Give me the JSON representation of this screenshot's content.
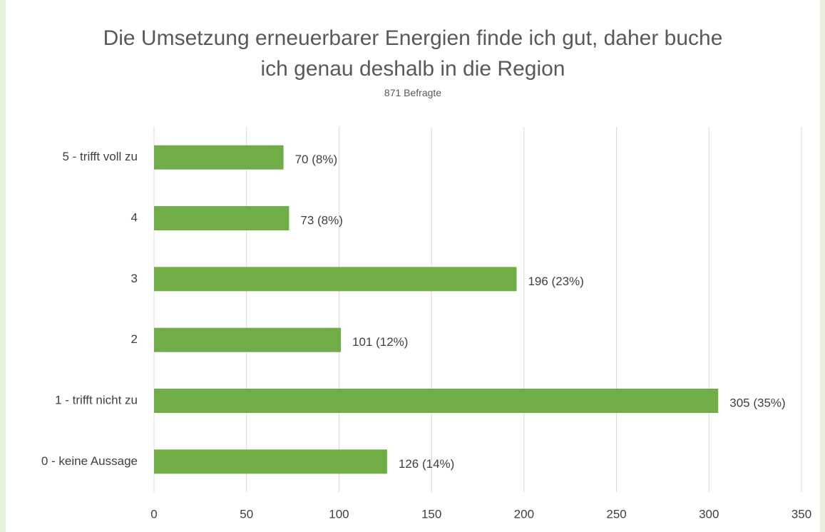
{
  "chart_data": {
    "type": "bar",
    "orientation": "horizontal",
    "title": "Die Umsetzung erneuerbarer Energien finde ich gut, daher buche ich genau deshalb in die Region",
    "subtitle": "871 Befragte",
    "categories": [
      "5 - trifft voll zu",
      "4",
      "3",
      "2",
      "1 - trifft nicht zu",
      "0 - keine Aussage"
    ],
    "values": [
      70,
      73,
      196,
      101,
      305,
      126
    ],
    "value_labels": [
      "70 (8%)",
      "73 (8%)",
      "196 (23%)",
      "101 (12%)",
      "305 (35%)",
      "126 (14%)"
    ],
    "color": "#70ad47",
    "xlim": [
      0,
      350
    ],
    "xticks": [
      0,
      50,
      100,
      150,
      200,
      250,
      300,
      350
    ],
    "grid": true
  }
}
